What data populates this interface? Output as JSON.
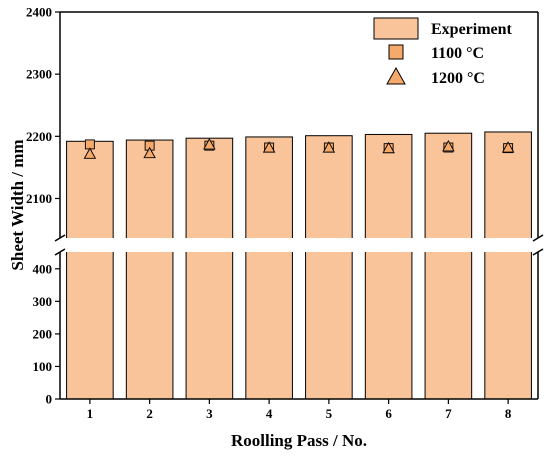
{
  "chart_data": {
    "type": "bar",
    "categories": [
      "1",
      "2",
      "3",
      "4",
      "5",
      "6",
      "7",
      "8"
    ],
    "series": [
      {
        "name": "Experiment",
        "kind": "bar",
        "values": [
          2192,
          2194,
          2197,
          2199,
          2201,
          2203,
          2205,
          2207
        ],
        "color": "#f9c49a",
        "stroke": "#000000"
      },
      {
        "name": "1100 °C",
        "kind": "marker",
        "marker": "square",
        "values": [
          2187,
          2185,
          2185,
          2182,
          2182,
          2181,
          2182,
          2181
        ],
        "color": "#f5a96a"
      },
      {
        "name": "1200 °C",
        "kind": "marker",
        "marker": "triangle",
        "values": [
          2171,
          2172,
          2186,
          2181,
          2181,
          2180,
          2183,
          2181
        ],
        "color": "#f5a96a"
      }
    ],
    "xlabel": "Roolling Pass / No.",
    "ylabel": "Sheet Width / mm",
    "axis_break": true,
    "y_upper_segment": {
      "ylim": [
        2030,
        2400
      ],
      "ticks": [
        2100,
        2200,
        2300,
        2400
      ]
    },
    "y_lower_segment": {
      "ylim": [
        0,
        470
      ],
      "ticks": [
        0,
        100,
        200,
        300,
        400
      ]
    },
    "legend_position": "top-right",
    "grid": false
  }
}
